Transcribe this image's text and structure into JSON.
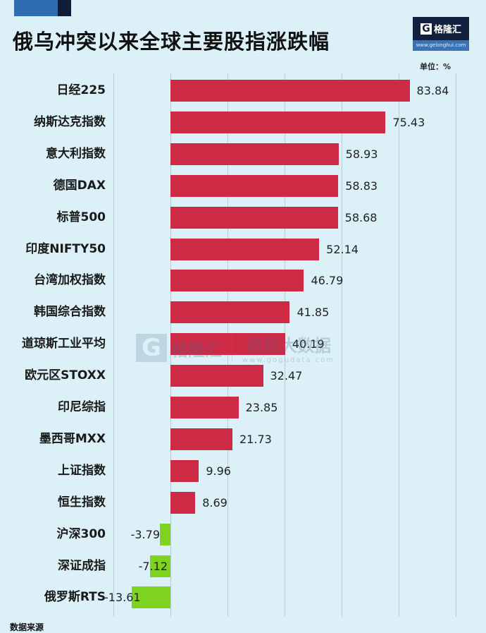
{
  "header": {
    "title": "俄乌冲突以来全球主要股指涨跌幅",
    "unit": "单位：%"
  },
  "logo": {
    "g": "G",
    "name": "格隆汇",
    "url": "www.gelonghui.com"
  },
  "watermark": {
    "g": "G",
    "left": "格隆汇",
    "right": "格股大数据",
    "url": "www.gogudata.com"
  },
  "footer": {
    "text": "数据来源"
  },
  "colors": {
    "background": "#dbf1f7",
    "positive": "#cc2a45",
    "negative": "#7ed321"
  },
  "chart_data": {
    "type": "bar",
    "orientation": "horizontal",
    "title": "俄乌冲突以来全球主要股指涨跌幅",
    "unit": "%",
    "xlabel": "",
    "ylabel": "",
    "xlim": [
      -20,
      100
    ],
    "grid": true,
    "gridlines": [
      -20,
      0,
      20,
      40,
      60,
      80,
      100
    ],
    "legend": null,
    "categories": [
      "日经225",
      "纳斯达克指数",
      "意大利指数",
      "德国DAX",
      "标普500",
      "印度NIFTY50",
      "台湾加权指数",
      "韩国综合指数",
      "道琼斯工业平均",
      "欧元区STOXX",
      "印尼综指",
      "墨西哥MXX",
      "上证指数",
      "恒生指数",
      "沪深300",
      "深证成指",
      "俄罗斯RTS"
    ],
    "values": [
      83.84,
      75.43,
      58.93,
      58.83,
      58.68,
      52.14,
      46.79,
      41.85,
      40.19,
      32.47,
      23.85,
      21.73,
      9.96,
      8.69,
      -3.79,
      -7.12,
      -13.61
    ],
    "value_labels": [
      "83.84",
      "75.43",
      "58.93",
      "58.83",
      "58.68",
      "52.14",
      "46.79",
      "41.85",
      "40.19",
      "32.47",
      "23.85",
      "21.73",
      "9.96",
      "8.69",
      "-3.79",
      "-7.12",
      "-13.61"
    ]
  }
}
